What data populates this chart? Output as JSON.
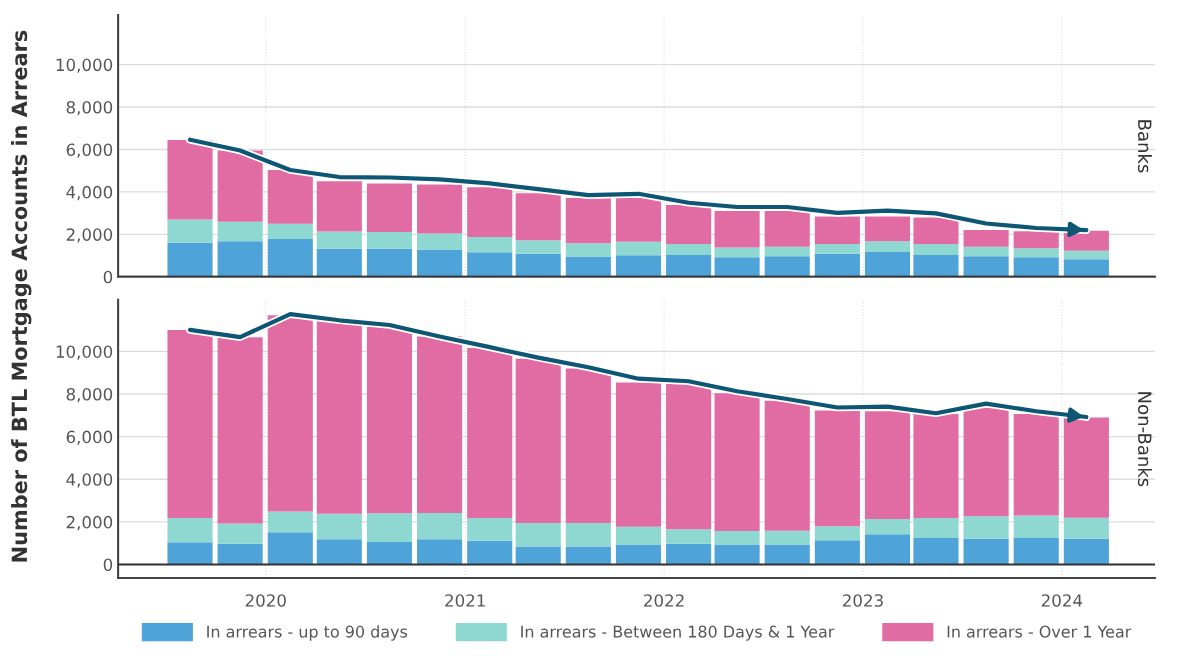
{
  "chart_data": [
    {
      "type": "bar",
      "title": "Banks",
      "ylabel": "Number of BTL Mortgage Accounts in Arrears",
      "stacked": true,
      "x": [
        "2019-08-15",
        "2019-11-15",
        "2020-02-15",
        "2020-05-15",
        "2020-08-15",
        "2020-11-15",
        "2021-02-15",
        "2021-05-15",
        "2021-08-15",
        "2021-11-15",
        "2022-02-15",
        "2022-05-15",
        "2022-08-15",
        "2022-11-15",
        "2023-02-15",
        "2023-05-15",
        "2023-08-15",
        "2023-11-15",
        "2024-02-15"
      ],
      "series": [
        {
          "color": "#4ea3d8",
          "values": [
            1600,
            1670,
            1780,
            1320,
            1320,
            1290,
            1160,
            1080,
            950,
            1010,
            1030,
            920,
            970,
            1080,
            1170,
            1030,
            970,
            920,
            830
          ]
        },
        {
          "color": "#8fd8d2",
          "values": [
            1100,
            920,
            720,
            810,
            790,
            750,
            710,
            640,
            630,
            640,
            510,
            460,
            440,
            460,
            500,
            510,
            440,
            420,
            400
          ]
        },
        {
          "color": "#e06ca3",
          "values": [
            3750,
            3360,
            2530,
            2370,
            2290,
            2310,
            2350,
            2220,
            2130,
            2060,
            1840,
            1720,
            1690,
            1300,
            1170,
            1250,
            790,
            810,
            940
          ]
        },
        {
          "type": "line",
          "color": "#0d5674",
          "values": [
            6460,
            5950,
            5030,
            4700,
            4680,
            4590,
            4400,
            4130,
            3850,
            3910,
            3490,
            3290,
            3290,
            3010,
            3120,
            2990,
            2510,
            2300,
            2200
          ]
        }
      ],
      "xlim": [
        "2019-04-05",
        "2024-06-20"
      ],
      "ylim": [
        0,
        12330
      ],
      "yticks": [
        {
          "value": 0,
          "label": "0"
        },
        {
          "value": 2000,
          "label": "2,000"
        },
        {
          "value": 4000,
          "label": "4,000"
        },
        {
          "value": 6000,
          "label": "6,000"
        },
        {
          "value": 8000,
          "label": "8,000"
        },
        {
          "value": 10000,
          "label": "10,000"
        }
      ],
      "xticks": [
        "2020-01-01",
        "2021-01-01",
        "2022-01-01",
        "2023-01-01",
        "2024-01-01"
      ],
      "tick_labels": "y",
      "grid": true,
      "legend": false,
      "ref_lines": [
        {
          "axis": "y",
          "value": 0,
          "color": "#333333"
        }
      ]
    },
    {
      "type": "bar",
      "title": "Non-Banks",
      "stacked": true,
      "x": [
        "2019-08-15",
        "2019-11-15",
        "2020-02-15",
        "2020-05-15",
        "2020-08-15",
        "2020-11-15",
        "2021-02-15",
        "2021-05-15",
        "2021-08-15",
        "2021-11-15",
        "2022-02-15",
        "2022-05-15",
        "2022-08-15",
        "2022-11-15",
        "2023-02-15",
        "2023-05-15",
        "2023-08-15",
        "2023-11-15",
        "2024-02-15"
      ],
      "series": [
        {
          "name": "In arrears - up to 90 days",
          "color": "#4ea3d8",
          "values": [
            1050,
            970,
            1510,
            1190,
            1060,
            1190,
            1120,
            850,
            850,
            940,
            970,
            940,
            940,
            1140,
            1420,
            1240,
            1210,
            1240,
            1210
          ]
        },
        {
          "name": "In arrears - Between 180 Days & 1 Year",
          "color": "#8fd8d2",
          "values": [
            1130,
            960,
            980,
            1190,
            1350,
            1230,
            1060,
            1100,
            1100,
            830,
            690,
            630,
            650,
            650,
            720,
            940,
            1060,
            1060,
            990
          ]
        },
        {
          "name": "In arrears - Over 1 Year",
          "color": "#e06ca3",
          "values": [
            8830,
            8740,
            9210,
            9050,
            8740,
            8280,
            7980,
            7710,
            7250,
            6770,
            6830,
            6470,
            6100,
            5440,
            5050,
            4880,
            5100,
            4760,
            4700
          ]
        },
        {
          "type": "line",
          "color": "#0d5674",
          "values": [
            11010,
            10670,
            11750,
            11460,
            11240,
            10700,
            10200,
            9710,
            9260,
            8720,
            8600,
            8130,
            7770,
            7370,
            7410,
            7100,
            7550,
            7190,
            6920
          ]
        }
      ],
      "xlim": [
        "2019-04-05",
        "2024-06-20"
      ],
      "ylim": [
        -630,
        12420
      ],
      "yticks": [
        {
          "value": 0,
          "label": "0"
        },
        {
          "value": 2000,
          "label": "2,000"
        },
        {
          "value": 4000,
          "label": "4,000"
        },
        {
          "value": 6000,
          "label": "6,000"
        },
        {
          "value": 8000,
          "label": "8,000"
        },
        {
          "value": 10000,
          "label": "10,000"
        }
      ],
      "xticks": [
        {
          "value": "2020-01-01",
          "label": "2020"
        },
        {
          "value": "2021-01-01",
          "label": "2021"
        },
        {
          "value": "2022-01-01",
          "label": "2022"
        },
        {
          "value": "2023-01-01",
          "label": "2023"
        },
        {
          "value": "2024-01-01",
          "label": "2024"
        }
      ],
      "grid": true,
      "legend": "bottom",
      "ref_lines": [
        {
          "axis": "y",
          "value": 0,
          "color": "#333333"
        }
      ]
    }
  ]
}
